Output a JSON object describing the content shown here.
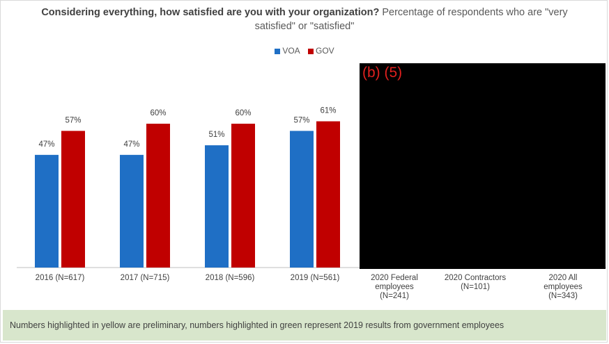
{
  "title_bold": "Considering everything, how satisfied are you with your organization?",
  "title_rest": "Percentage of respondents who are \"very satisfied\" or \"satisfied\"",
  "redaction_label": "(b) (5)",
  "footer_note": "Numbers highlighted in yellow are preliminary, numbers highlighted in green represent 2019 results from government employees",
  "colors": {
    "voa": "#1f6fc5",
    "gov": "#c00000",
    "axis": "#bfbfbf",
    "label": "#404040"
  },
  "chart_data": {
    "type": "bar",
    "categories": [
      [
        "2016 (N=617)"
      ],
      [
        "2017 (N=715)"
      ],
      [
        "2018 (N=596)"
      ],
      [
        "2019 (N=561)"
      ],
      [
        "2020 Federal",
        "employees",
        "(N=241)"
      ],
      [
        "2020 Contractors",
        "(N=101)"
      ],
      [
        "2020 All",
        "employees",
        "(N=343)"
      ]
    ],
    "series": [
      {
        "name": "VOA",
        "values": [
          47,
          47,
          51,
          57,
          null,
          null,
          null
        ],
        "labels": [
          "47%",
          "47%",
          "51%",
          "57%",
          null,
          null,
          null
        ]
      },
      {
        "name": "GOV",
        "values": [
          57,
          60,
          60,
          61,
          null,
          null,
          null
        ],
        "labels": [
          "57%",
          "60%",
          "60%",
          "61%",
          null,
          null,
          null
        ]
      }
    ],
    "ylim": [
      0,
      100
    ],
    "grid": false,
    "legend_position": "top-center"
  }
}
